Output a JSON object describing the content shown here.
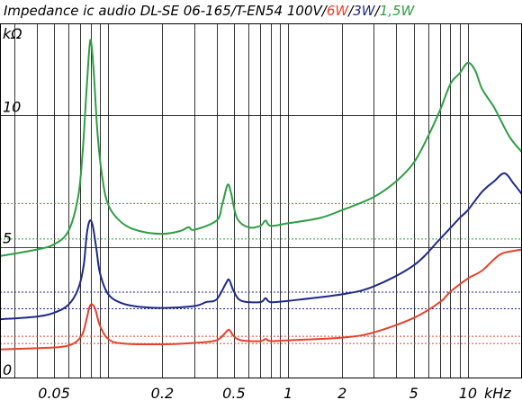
{
  "chart_data": {
    "type": "line",
    "title_parts": [
      {
        "text": "Impedance ic audio DL-SE 06-165/T-EN54 100V/",
        "color": "#000000"
      },
      {
        "text": "6W",
        "color": "#e8402a"
      },
      {
        "text": "/",
        "color": "#000000"
      },
      {
        "text": "3W",
        "color": "#1e2a8a"
      },
      {
        "text": "/",
        "color": "#000000"
      },
      {
        "text": "1,5W",
        "color": "#2e9e44"
      }
    ],
    "ylabel": "kΩ",
    "xlabel": "kHz",
    "x_scale": "log",
    "xlim": [
      0.025,
      20
    ],
    "ylim": [
      0,
      13.5
    ],
    "grid": true,
    "x_tick_labels": [
      {
        "value": 0.05,
        "label": "0.05"
      },
      {
        "value": 0.2,
        "label": "0.2"
      },
      {
        "value": 0.5,
        "label": "0.5"
      },
      {
        "value": 1,
        "label": "1"
      },
      {
        "value": 2,
        "label": "2"
      },
      {
        "value": 5,
        "label": "5"
      },
      {
        "value": 10,
        "label": "10"
      }
    ],
    "y_tick_labels": [
      {
        "value": 0,
        "label": "0"
      },
      {
        "value": 5,
        "label": "5"
      },
      {
        "value": 10,
        "label": "10"
      }
    ],
    "series": [
      {
        "name": "6W",
        "color": "#e8402a",
        "reference_lines": [
          1.33,
          1.6
        ],
        "points": [
          [
            0.025,
            1.1
          ],
          [
            0.04,
            1.15
          ],
          [
            0.055,
            1.2
          ],
          [
            0.065,
            1.35
          ],
          [
            0.072,
            1.7
          ],
          [
            0.076,
            2.3
          ],
          [
            0.079,
            2.75
          ],
          [
            0.082,
            2.8
          ],
          [
            0.085,
            2.6
          ],
          [
            0.09,
            2.0
          ],
          [
            0.1,
            1.5
          ],
          [
            0.12,
            1.33
          ],
          [
            0.2,
            1.3
          ],
          [
            0.3,
            1.35
          ],
          [
            0.4,
            1.45
          ],
          [
            0.45,
            1.75
          ],
          [
            0.47,
            1.85
          ],
          [
            0.5,
            1.6
          ],
          [
            0.55,
            1.45
          ],
          [
            0.7,
            1.42
          ],
          [
            0.75,
            1.5
          ],
          [
            0.8,
            1.42
          ],
          [
            1,
            1.45
          ],
          [
            2,
            1.55
          ],
          [
            3,
            1.75
          ],
          [
            5,
            2.3
          ],
          [
            7,
            2.9
          ],
          [
            8,
            3.3
          ],
          [
            10,
            3.8
          ],
          [
            12,
            4.1
          ],
          [
            15,
            4.7
          ],
          [
            18,
            4.85
          ],
          [
            20,
            4.9
          ]
        ]
      },
      {
        "name": "3W",
        "color": "#1e2a8a",
        "reference_lines": [
          2.65,
          3.28
        ],
        "points": [
          [
            0.025,
            2.25
          ],
          [
            0.04,
            2.35
          ],
          [
            0.05,
            2.5
          ],
          [
            0.06,
            2.8
          ],
          [
            0.068,
            3.4
          ],
          [
            0.073,
            4.3
          ],
          [
            0.076,
            5.5
          ],
          [
            0.079,
            6.0
          ],
          [
            0.082,
            5.8
          ],
          [
            0.086,
            4.9
          ],
          [
            0.09,
            4.0
          ],
          [
            0.1,
            3.2
          ],
          [
            0.12,
            2.85
          ],
          [
            0.15,
            2.72
          ],
          [
            0.2,
            2.68
          ],
          [
            0.3,
            2.75
          ],
          [
            0.35,
            2.9
          ],
          [
            0.4,
            3.0
          ],
          [
            0.45,
            3.6
          ],
          [
            0.47,
            3.75
          ],
          [
            0.5,
            3.3
          ],
          [
            0.55,
            2.95
          ],
          [
            0.7,
            2.9
          ],
          [
            0.75,
            3.05
          ],
          [
            0.8,
            2.9
          ],
          [
            1,
            2.95
          ],
          [
            2,
            3.2
          ],
          [
            3,
            3.5
          ],
          [
            5,
            4.3
          ],
          [
            7,
            5.3
          ],
          [
            9,
            6.1
          ],
          [
            10,
            6.4
          ],
          [
            12,
            7.1
          ],
          [
            14,
            7.5
          ],
          [
            16,
            7.8
          ],
          [
            18,
            7.4
          ],
          [
            20,
            7.0
          ]
        ]
      },
      {
        "name": "1,5W",
        "color": "#2e9e44",
        "reference_lines": [
          5.3,
          6.65
        ],
        "points": [
          [
            0.025,
            4.65
          ],
          [
            0.04,
            4.9
          ],
          [
            0.05,
            5.1
          ],
          [
            0.06,
            5.6
          ],
          [
            0.068,
            6.9
          ],
          [
            0.072,
            8.6
          ],
          [
            0.075,
            10.5
          ],
          [
            0.078,
            12.3
          ],
          [
            0.08,
            12.85
          ],
          [
            0.083,
            11.7
          ],
          [
            0.087,
            9.4
          ],
          [
            0.092,
            7.8
          ],
          [
            0.1,
            6.6
          ],
          [
            0.12,
            5.9
          ],
          [
            0.15,
            5.6
          ],
          [
            0.2,
            5.5
          ],
          [
            0.25,
            5.6
          ],
          [
            0.28,
            5.75
          ],
          [
            0.3,
            5.65
          ],
          [
            0.4,
            6.0
          ],
          [
            0.43,
            6.6
          ],
          [
            0.46,
            7.35
          ],
          [
            0.48,
            7.1
          ],
          [
            0.52,
            6.1
          ],
          [
            0.6,
            5.75
          ],
          [
            0.7,
            5.8
          ],
          [
            0.75,
            6.0
          ],
          [
            0.8,
            5.8
          ],
          [
            1,
            5.9
          ],
          [
            1.5,
            6.1
          ],
          [
            2,
            6.4
          ],
          [
            3,
            6.9
          ],
          [
            4,
            7.5
          ],
          [
            5,
            8.2
          ],
          [
            6,
            9.2
          ],
          [
            7,
            10.2
          ],
          [
            8,
            11.2
          ],
          [
            9,
            11.6
          ],
          [
            10,
            12.0
          ],
          [
            11,
            11.7
          ],
          [
            12,
            11.0
          ],
          [
            14,
            10.3
          ],
          [
            17,
            9.2
          ],
          [
            20,
            8.6
          ]
        ]
      }
    ]
  }
}
